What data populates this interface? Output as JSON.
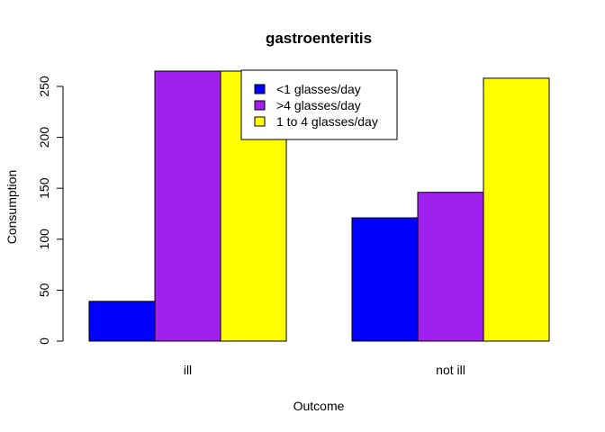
{
  "chart_data": {
    "type": "bar",
    "mode": "grouped",
    "title": "gastroenteritis",
    "xlabel": "Outcome",
    "ylabel": "Consumption",
    "categories": [
      "ill",
      "not ill"
    ],
    "series": [
      {
        "name": "<1 glasses/day",
        "color": "#0000FF",
        "values": [
          39,
          121
        ]
      },
      {
        "name": ">4 glasses/day",
        "color": "#A020F0",
        "values": [
          265,
          146
        ]
      },
      {
        "name": "1 to 4 glasses/day",
        "color": "#FFFF00",
        "values": [
          265,
          258
        ]
      }
    ],
    "yticks": [
      0,
      50,
      100,
      150,
      200,
      250
    ],
    "ylim": [
      0,
      265
    ],
    "grid": false,
    "legend": "top-center"
  }
}
